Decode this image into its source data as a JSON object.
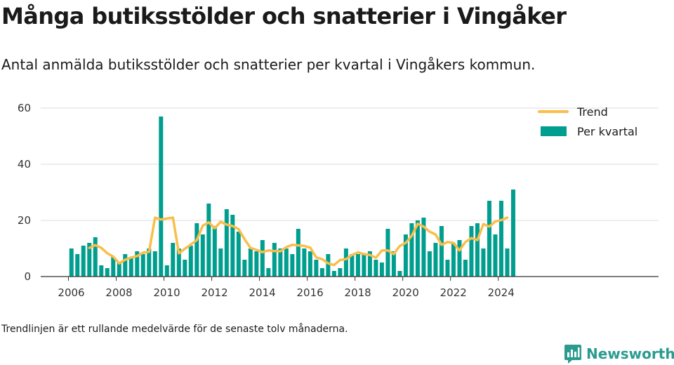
{
  "header": {
    "title": "Många butiksstölder och snatterier i Vingåker",
    "subtitle": "Antal anmälda butiksstölder och snatterier per kvartal i Vingåkers kommun."
  },
  "footnote": "Trendlinjen är ett rullande medelvärde för de senaste tolv månaderna.",
  "brand": {
    "name": "Newsworthy",
    "icon": "newsworthy-logo-icon",
    "color": "#2b9b8f"
  },
  "colors": {
    "bars": "#009e8e",
    "trend": "#f9be4b",
    "grid": "#dddddd",
    "axis": "#333333"
  },
  "chart_data": {
    "type": "bar",
    "x_unit": "quarter",
    "start": "2006 Q1",
    "values": [
      10,
      8,
      11,
      12,
      14,
      4,
      3,
      7,
      5,
      8,
      7,
      9,
      8,
      10,
      9,
      57,
      4,
      12,
      10,
      6,
      11,
      19,
      15,
      26,
      18,
      10,
      24,
      22,
      16,
      6,
      10,
      9,
      13,
      3,
      12,
      10,
      10,
      8,
      17,
      10,
      9,
      6,
      3,
      8,
      2,
      3,
      10,
      8,
      8,
      8,
      9,
      6,
      5,
      17,
      9,
      2,
      15,
      19,
      20,
      21,
      9,
      12,
      18,
      6,
      12,
      13,
      6,
      18,
      19,
      10,
      27,
      15,
      27,
      10,
      31
    ],
    "trend_start": "2006 Q4",
    "trend": [
      10.2,
      11.2,
      10.2,
      8.3,
      7.1,
      4.7,
      6.0,
      6.8,
      7.3,
      8.5,
      8.8,
      21.0,
      20.3,
      20.7,
      21.0,
      8.3,
      9.9,
      11.4,
      13.0,
      18.1,
      19.3,
      17.2,
      19.5,
      18.5,
      18.0,
      16.9,
      13.3,
      10.2,
      9.5,
      8.7,
      9.3,
      9.1,
      9.0,
      10.5,
      11.3,
      11.1,
      10.9,
      10.3,
      6.8,
      6.2,
      4.7,
      4.1,
      5.9,
      6.2,
      7.7,
      8.6,
      8.0,
      7.7,
      6.7,
      9.3,
      9.3,
      8.0,
      10.9,
      12.0,
      14.5,
      18.8,
      17.8,
      16.0,
      15.0,
      11.3,
      12.3,
      12.0,
      9.3,
      12.3,
      13.7,
      13.0,
      18.7,
      17.8,
      19.6,
      20.1,
      21.0
    ],
    "xticks": [
      "2006",
      "2008",
      "2010",
      "2012",
      "2014",
      "2016",
      "2018",
      "2020",
      "2022",
      "2024"
    ],
    "yticks": [
      "0",
      "20",
      "40",
      "60"
    ],
    "ylim": [
      0,
      60
    ],
    "grid": true,
    "legend_position": "top-right",
    "series": [
      {
        "name": "Trend",
        "kind": "line"
      },
      {
        "name": "Per kvartal",
        "kind": "bar"
      }
    ]
  }
}
